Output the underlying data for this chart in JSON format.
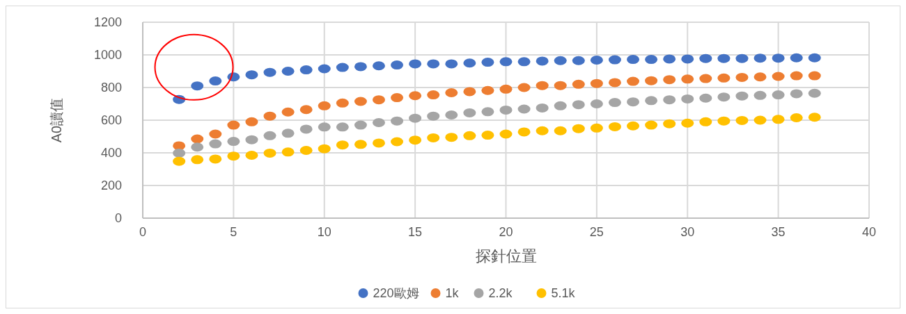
{
  "chart_data": {
    "type": "scatter",
    "xlabel": "探針位置",
    "ylabel": "A0讀值",
    "xlim": [
      0,
      40
    ],
    "xticks": [
      0,
      5,
      10,
      15,
      20,
      25,
      30,
      35,
      40
    ],
    "ylim": [
      0,
      1200
    ],
    "yticks": [
      0,
      200,
      400,
      600,
      800,
      1000,
      1200
    ],
    "grid": true,
    "legend": "bottom",
    "marker": "circle",
    "x": [
      2,
      3,
      4,
      5,
      6,
      7,
      8,
      9,
      10,
      11,
      12,
      13,
      14,
      15,
      16,
      17,
      18,
      19,
      20,
      21,
      22,
      23,
      24,
      25,
      26,
      27,
      28,
      29,
      30,
      31,
      32,
      33,
      34,
      35,
      36,
      37
    ],
    "series": [
      {
        "name": "220歐姆",
        "color": "#4472c4",
        "values": [
          727,
          810,
          840,
          865,
          878,
          893,
          900,
          908,
          915,
          923,
          928,
          933,
          938,
          945,
          945,
          945,
          950,
          955,
          958,
          958,
          962,
          965,
          965,
          968,
          970,
          972,
          972,
          975,
          975,
          978,
          978,
          978,
          980,
          980,
          982,
          982
        ]
      },
      {
        "name": "1k",
        "color": "#ed7d31",
        "values": [
          443,
          485,
          515,
          570,
          590,
          625,
          650,
          665,
          688,
          705,
          715,
          725,
          738,
          750,
          755,
          768,
          775,
          782,
          790,
          800,
          812,
          812,
          820,
          825,
          830,
          838,
          842,
          848,
          852,
          855,
          858,
          862,
          865,
          868,
          872,
          872
        ]
      },
      {
        "name": "2.2k",
        "color": "#a5a5a5",
        "values": [
          398,
          435,
          455,
          470,
          480,
          505,
          520,
          545,
          558,
          558,
          570,
          585,
          595,
          612,
          625,
          632,
          645,
          652,
          662,
          668,
          675,
          688,
          695,
          700,
          708,
          712,
          720,
          725,
          730,
          735,
          742,
          748,
          752,
          755,
          762,
          765
        ]
      },
      {
        "name": "5.1k",
        "color": "#ffc000",
        "values": [
          348,
          358,
          362,
          380,
          385,
          398,
          405,
          415,
          425,
          448,
          452,
          460,
          468,
          478,
          492,
          495,
          505,
          508,
          515,
          528,
          535,
          535,
          548,
          552,
          560,
          565,
          570,
          578,
          582,
          590,
          595,
          598,
          600,
          605,
          615,
          618
        ]
      }
    ]
  }
}
